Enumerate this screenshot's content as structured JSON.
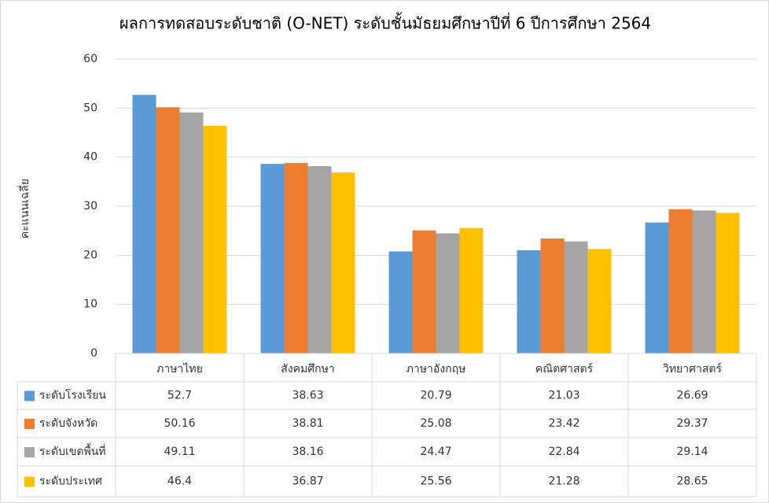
{
  "chart_data": {
    "type": "bar",
    "title": "ผลการทดสอบระดับชาติ (O-NET)  ระดับชั้นมัธยมศึกษาปีที่ 6 ปีการศึกษา 2564",
    "y_label": "คะแนนเฉลี่ย",
    "categories": [
      "ภาษาไทย",
      "สังคมศึกษา",
      "ภาษาอังกฤษ",
      "คณิตศาสตร์",
      "วิทยาศาสตร์"
    ],
    "series": [
      {
        "name": "ระดับโรงเรียน",
        "color": "#5b9bd5",
        "values": [
          52.7,
          38.63,
          20.79,
          21.03,
          26.69
        ]
      },
      {
        "name": "ระดับจังหวัด",
        "color": "#ed7d31",
        "values": [
          50.16,
          38.81,
          25.08,
          23.42,
          29.37
        ]
      },
      {
        "name": "ระดับเขตพื้นที่",
        "color": "#a5a5a5",
        "values": [
          49.11,
          38.16,
          24.47,
          22.84,
          29.14
        ]
      },
      {
        "name": "ระดับประเทศ",
        "color": "#ffc000",
        "values": [
          46.4,
          36.87,
          25.56,
          21.28,
          28.65
        ]
      }
    ],
    "ylim": [
      0,
      60
    ],
    "yticks": [
      0,
      10,
      20,
      30,
      40,
      50,
      60
    ],
    "grid": true,
    "data_table": true
  }
}
